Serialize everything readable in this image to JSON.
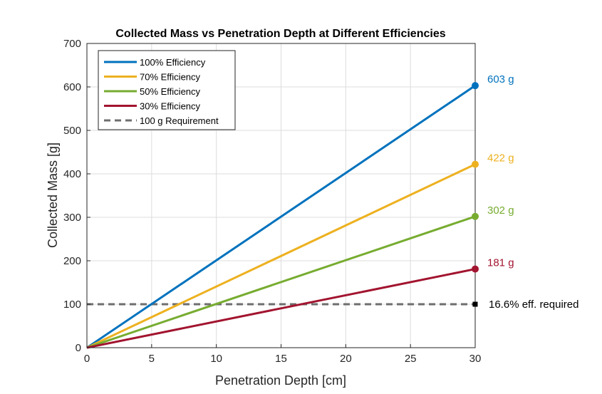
{
  "chart_data": {
    "type": "line",
    "title": "Collected Mass vs Penetration Depth at Different Efficiencies",
    "xlabel": "Penetration Depth [cm]",
    "ylabel": "Collected Mass [g]",
    "xlim": [
      0,
      30
    ],
    "ylim": [
      0,
      700
    ],
    "xticks": [
      0,
      5,
      10,
      15,
      20,
      25,
      30
    ],
    "yticks": [
      0,
      100,
      200,
      300,
      400,
      500,
      600,
      700
    ],
    "grid": true,
    "legend_position": "top-left",
    "series": [
      {
        "name": "100% Efficiency",
        "color": "#0072BD",
        "x": [
          0,
          30
        ],
        "y": [
          0,
          603
        ],
        "end_label": "603 g",
        "dash": false,
        "marker": "circle"
      },
      {
        "name": "70% Efficiency",
        "color": "#EDB120",
        "x": [
          0,
          30
        ],
        "y": [
          0,
          422
        ],
        "end_label": "422 g",
        "dash": false,
        "marker": "circle"
      },
      {
        "name": "50% Efficiency",
        "color": "#77AC30",
        "x": [
          0,
          30
        ],
        "y": [
          0,
          302
        ],
        "end_label": "302 g",
        "dash": false,
        "marker": "circle"
      },
      {
        "name": "30% Efficiency",
        "color": "#A2142F",
        "x": [
          0,
          30
        ],
        "y": [
          0,
          181
        ],
        "end_label": "181 g",
        "dash": false,
        "marker": "circle"
      },
      {
        "name": "100 g Requirement",
        "color": "#6E6E6E",
        "x": [
          0,
          30
        ],
        "y": [
          100,
          100
        ],
        "end_label": "16.6% eff. required",
        "dash": true,
        "marker": "square"
      }
    ]
  }
}
